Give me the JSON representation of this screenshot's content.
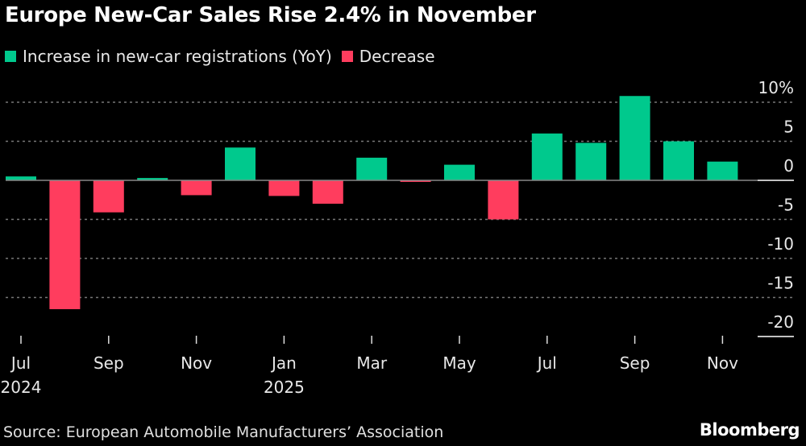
{
  "chart_data": {
    "type": "bar",
    "title": "Europe New-Car Sales Rise 2.4% in November",
    "legend": [
      {
        "label": "Increase in new-car registrations (YoY)",
        "color": "#00c98d"
      },
      {
        "label": "Decrease",
        "color": "#ff3d5e"
      }
    ],
    "legend_placement": "top-left",
    "categories": [
      "Jul 2024",
      "Aug 2024",
      "Sep 2024",
      "Oct 2024",
      "Nov 2024",
      "Dec 2024",
      "Jan 2025",
      "Feb 2025",
      "Mar 2025",
      "Apr 2025",
      "May 2025",
      "Jun 2025",
      "Jul 2025",
      "Aug 2025",
      "Sep 2025",
      "Oct 2025",
      "Nov 2025"
    ],
    "values": [
      0.5,
      -16.5,
      -4.1,
      0.3,
      -1.9,
      4.2,
      -2.0,
      -3.0,
      2.9,
      -0.2,
      2.0,
      -5.0,
      6.0,
      4.8,
      10.8,
      5.0,
      2.4
    ],
    "x_tick_labels": [
      {
        "label": "Jul",
        "sub": "2024"
      },
      {
        "label": "Sep",
        "sub": ""
      },
      {
        "label": "Nov",
        "sub": ""
      },
      {
        "label": "Jan",
        "sub": "2025"
      },
      {
        "label": "Mar",
        "sub": ""
      },
      {
        "label": "May",
        "sub": ""
      },
      {
        "label": "Jul",
        "sub": ""
      },
      {
        "label": "Sep",
        "sub": ""
      },
      {
        "label": "Nov",
        "sub": ""
      }
    ],
    "y_ticks": [
      10,
      5,
      0,
      -5,
      -10,
      -15,
      -20
    ],
    "y_tick_labels": [
      "10%",
      "5",
      "0",
      "-5",
      "-10",
      "-15",
      "-20"
    ],
    "ylim": [
      -20,
      10
    ],
    "y_axis_side": "right",
    "grid": true,
    "colors": {
      "positive": "#00c98d",
      "negative": "#ff3d5e",
      "grid": "#777777",
      "zero_line": "#888888"
    }
  },
  "footer": {
    "source": "Source: European Automobile Manufacturers’ Association",
    "brand": "Bloomberg"
  }
}
